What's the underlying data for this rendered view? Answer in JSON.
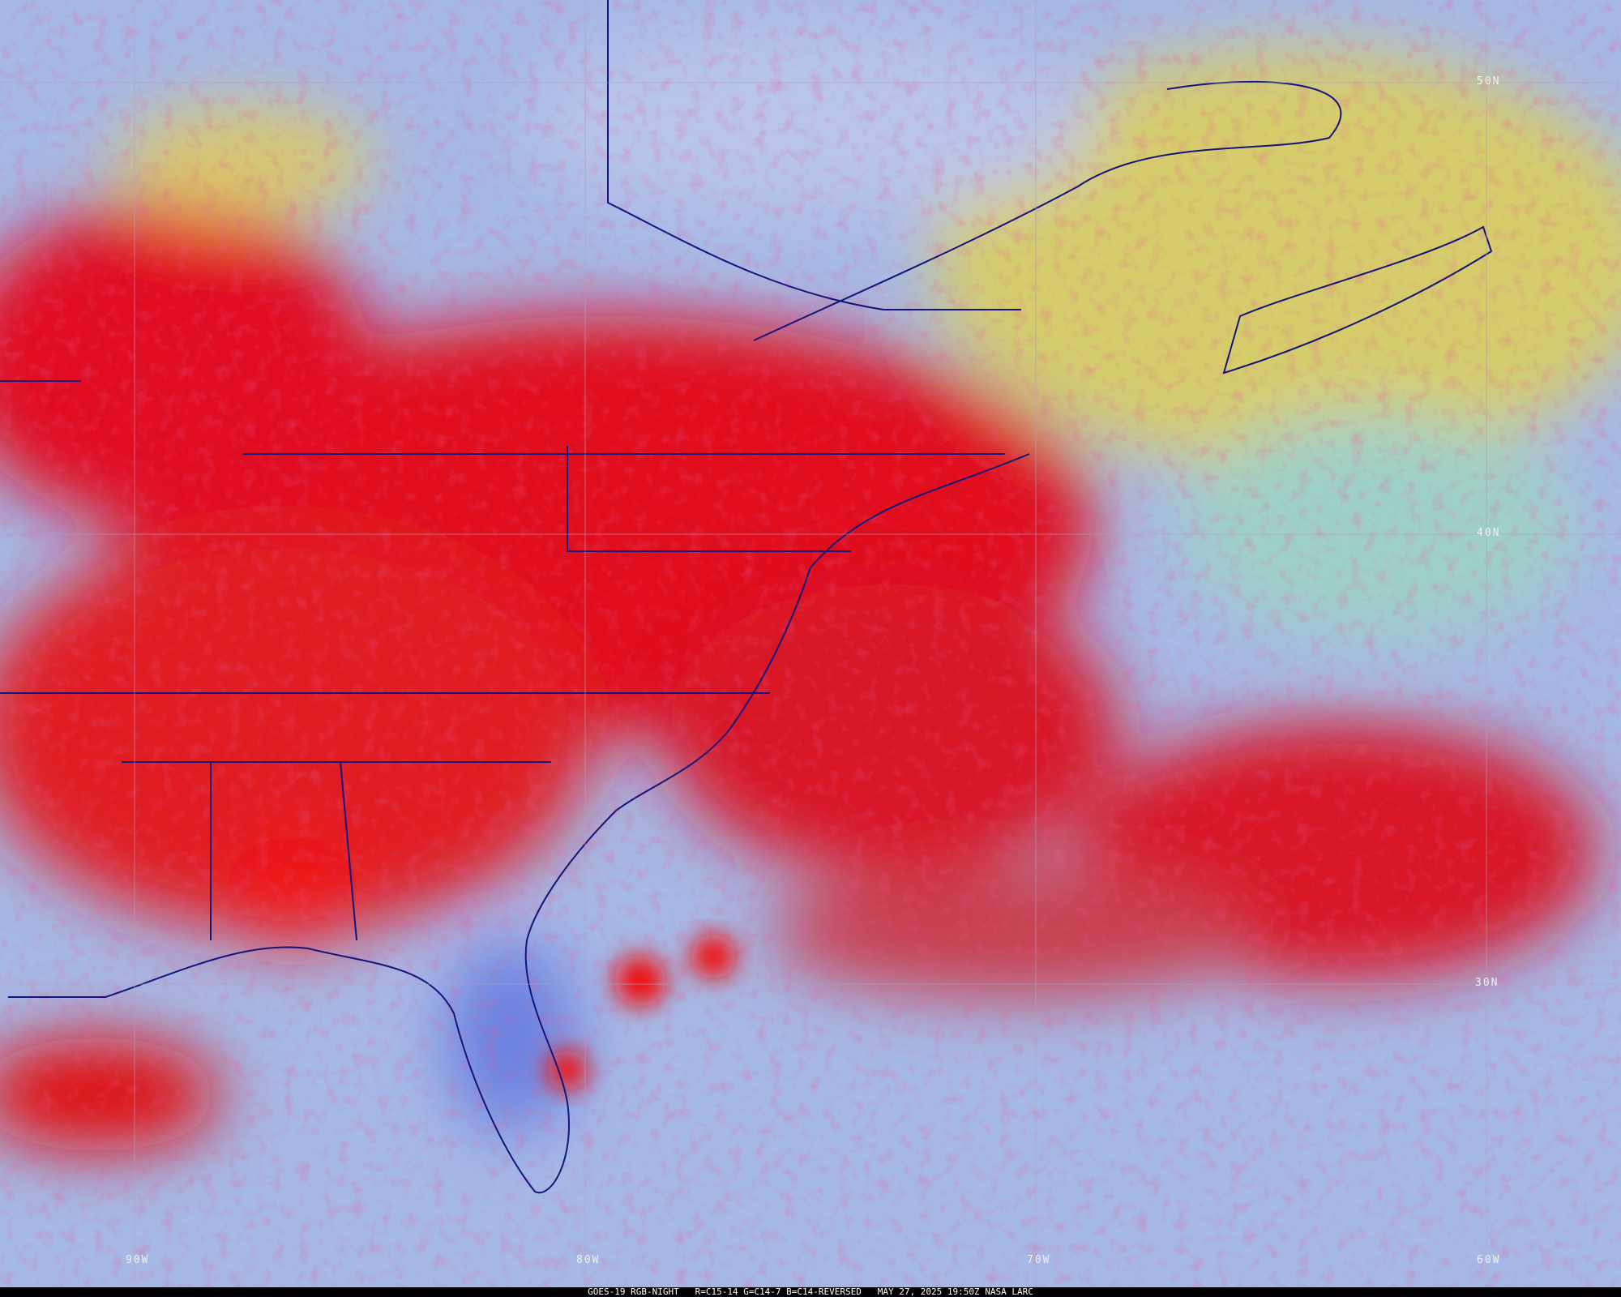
{
  "caption": {
    "satellite": "GOES-19 RGB-NIGHT",
    "channels": "R=C15-14 G=C14-7 B=C14-REVERSED",
    "datetime": "MAY 27, 2025 19:50Z",
    "source": "NASA LARC"
  },
  "latitude_labels": [
    "50N",
    "40N",
    "30N"
  ],
  "longitude_labels": [
    "90W",
    "80W",
    "70W",
    "60W"
  ],
  "colors": {
    "deep_cloud": "#e0101a",
    "low_cloud": "#d8cf6a",
    "clear": "#a6b8e6",
    "boundaries": "#14147a",
    "grid": "#b0a0c0"
  }
}
